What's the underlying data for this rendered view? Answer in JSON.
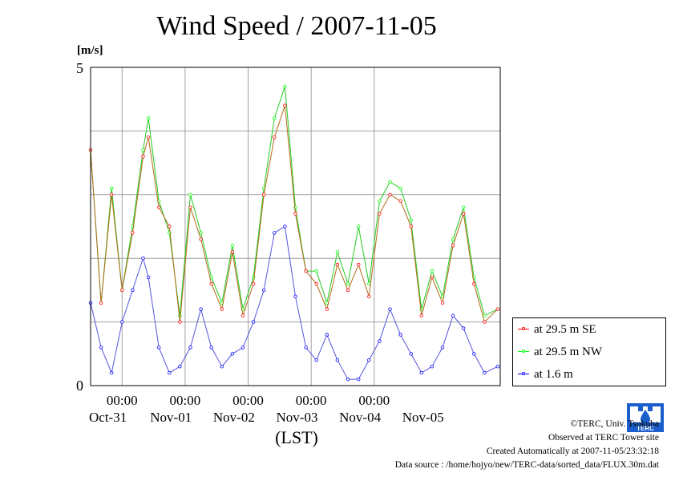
{
  "chart_data": {
    "type": "line",
    "title": "Wind Speed / 2007-11-05",
    "ylabel": "[m/s]",
    "xlabel": "(LST)",
    "ylim": [
      0,
      5
    ],
    "y_ticks": [
      0,
      5
    ],
    "y_grid": [
      1,
      2,
      3,
      4
    ],
    "x_time_labels": [
      "00:00",
      "00:00",
      "00:00",
      "00:00",
      "00:00"
    ],
    "x_date_labels": [
      "Oct-31",
      "Nov-01",
      "Nov-02",
      "Nov-03",
      "Nov-04",
      "Nov-05"
    ],
    "x_range": [
      "2007-10-30T12:00",
      "2007-11-05T23:59"
    ],
    "grid": true,
    "legend_position": "bottom-right",
    "series": [
      {
        "name": "at 29.5 m SE",
        "color": "#ff0000",
        "points": [
          [
            "2007-10-30T12:00",
            3.7
          ],
          [
            "2007-10-30T16:00",
            1.3
          ],
          [
            "2007-10-30T20:00",
            3.0
          ],
          [
            "2007-10-31T00:00",
            1.5
          ],
          [
            "2007-10-31T04:00",
            2.4
          ],
          [
            "2007-10-31T08:00",
            3.6
          ],
          [
            "2007-10-31T10:00",
            3.9
          ],
          [
            "2007-10-31T14:00",
            2.8
          ],
          [
            "2007-10-31T18:00",
            2.5
          ],
          [
            "2007-10-31T22:00",
            1.0
          ],
          [
            "2007-11-01T02:00",
            2.8
          ],
          [
            "2007-11-01T06:00",
            2.3
          ],
          [
            "2007-11-01T10:00",
            1.6
          ],
          [
            "2007-11-01T14:00",
            1.2
          ],
          [
            "2007-11-01T18:00",
            2.1
          ],
          [
            "2007-11-01T22:00",
            1.1
          ],
          [
            "2007-11-02T02:00",
            1.6
          ],
          [
            "2007-11-02T06:00",
            3.0
          ],
          [
            "2007-11-02T10:00",
            3.9
          ],
          [
            "2007-11-02T14:00",
            4.4
          ],
          [
            "2007-11-02T18:00",
            2.7
          ],
          [
            "2007-11-02T22:00",
            1.8
          ],
          [
            "2007-11-03T02:00",
            1.6
          ],
          [
            "2007-11-03T06:00",
            1.2
          ],
          [
            "2007-11-03T10:00",
            1.9
          ],
          [
            "2007-11-03T14:00",
            1.5
          ],
          [
            "2007-11-03T18:00",
            1.9
          ],
          [
            "2007-11-03T22:00",
            1.4
          ],
          [
            "2007-11-04T02:00",
            2.7
          ],
          [
            "2007-11-04T06:00",
            3.0
          ],
          [
            "2007-11-04T10:00",
            2.9
          ],
          [
            "2007-11-04T14:00",
            2.5
          ],
          [
            "2007-11-04T18:00",
            1.1
          ],
          [
            "2007-11-04T22:00",
            1.7
          ],
          [
            "2007-11-05T02:00",
            1.3
          ],
          [
            "2007-11-05T06:00",
            2.2
          ],
          [
            "2007-11-05T10:00",
            2.7
          ],
          [
            "2007-11-05T14:00",
            1.6
          ],
          [
            "2007-11-05T18:00",
            1.0
          ],
          [
            "2007-11-05T23:00",
            1.2
          ]
        ]
      },
      {
        "name": "at 29.5 m NW",
        "color": "#00ff00",
        "points": [
          [
            "2007-10-30T12:00",
            3.7
          ],
          [
            "2007-10-30T16:00",
            1.3
          ],
          [
            "2007-10-30T20:00",
            3.1
          ],
          [
            "2007-10-31T00:00",
            1.5
          ],
          [
            "2007-10-31T04:00",
            2.5
          ],
          [
            "2007-10-31T08:00",
            3.7
          ],
          [
            "2007-10-31T10:00",
            4.2
          ],
          [
            "2007-10-31T14:00",
            2.9
          ],
          [
            "2007-10-31T18:00",
            2.4
          ],
          [
            "2007-10-31T22:00",
            1.1
          ],
          [
            "2007-11-01T02:00",
            3.0
          ],
          [
            "2007-11-01T06:00",
            2.4
          ],
          [
            "2007-11-01T10:00",
            1.7
          ],
          [
            "2007-11-01T14:00",
            1.3
          ],
          [
            "2007-11-01T18:00",
            2.2
          ],
          [
            "2007-11-01T22:00",
            1.2
          ],
          [
            "2007-11-02T02:00",
            1.7
          ],
          [
            "2007-11-02T06:00",
            3.1
          ],
          [
            "2007-11-02T10:00",
            4.2
          ],
          [
            "2007-11-02T14:00",
            4.7
          ],
          [
            "2007-11-02T18:00",
            2.8
          ],
          [
            "2007-11-02T22:00",
            1.8
          ],
          [
            "2007-11-03T02:00",
            1.8
          ],
          [
            "2007-11-03T06:00",
            1.3
          ],
          [
            "2007-11-03T10:00",
            2.1
          ],
          [
            "2007-11-03T14:00",
            1.6
          ],
          [
            "2007-11-03T18:00",
            2.5
          ],
          [
            "2007-11-03T22:00",
            1.6
          ],
          [
            "2007-11-04T02:00",
            2.9
          ],
          [
            "2007-11-04T06:00",
            3.2
          ],
          [
            "2007-11-04T10:00",
            3.1
          ],
          [
            "2007-11-04T14:00",
            2.6
          ],
          [
            "2007-11-04T18:00",
            1.2
          ],
          [
            "2007-11-04T22:00",
            1.8
          ],
          [
            "2007-11-05T02:00",
            1.4
          ],
          [
            "2007-11-05T06:00",
            2.3
          ],
          [
            "2007-11-05T10:00",
            2.8
          ],
          [
            "2007-11-05T14:00",
            1.7
          ],
          [
            "2007-11-05T18:00",
            1.1
          ],
          [
            "2007-11-05T23:00",
            1.2
          ]
        ]
      },
      {
        "name": "at 1.6 m",
        "color": "#0000ff",
        "points": [
          [
            "2007-10-30T12:00",
            1.3
          ],
          [
            "2007-10-30T16:00",
            0.6
          ],
          [
            "2007-10-30T20:00",
            0.2
          ],
          [
            "2007-10-31T00:00",
            1.0
          ],
          [
            "2007-10-31T04:00",
            1.5
          ],
          [
            "2007-10-31T08:00",
            2.0
          ],
          [
            "2007-10-31T10:00",
            1.7
          ],
          [
            "2007-10-31T14:00",
            0.6
          ],
          [
            "2007-10-31T18:00",
            0.2
          ],
          [
            "2007-10-31T22:00",
            0.3
          ],
          [
            "2007-11-01T02:00",
            0.6
          ],
          [
            "2007-11-01T06:00",
            1.2
          ],
          [
            "2007-11-01T10:00",
            0.6
          ],
          [
            "2007-11-01T14:00",
            0.3
          ],
          [
            "2007-11-01T18:00",
            0.5
          ],
          [
            "2007-11-01T22:00",
            0.6
          ],
          [
            "2007-11-02T02:00",
            1.0
          ],
          [
            "2007-11-02T06:00",
            1.5
          ],
          [
            "2007-11-02T10:00",
            2.4
          ],
          [
            "2007-11-02T14:00",
            2.5
          ],
          [
            "2007-11-02T18:00",
            1.4
          ],
          [
            "2007-11-02T22:00",
            0.6
          ],
          [
            "2007-11-03T02:00",
            0.4
          ],
          [
            "2007-11-03T06:00",
            0.8
          ],
          [
            "2007-11-03T10:00",
            0.4
          ],
          [
            "2007-11-03T14:00",
            0.1
          ],
          [
            "2007-11-03T18:00",
            0.1
          ],
          [
            "2007-11-03T22:00",
            0.4
          ],
          [
            "2007-11-04T02:00",
            0.7
          ],
          [
            "2007-11-04T06:00",
            1.2
          ],
          [
            "2007-11-04T10:00",
            0.8
          ],
          [
            "2007-11-04T14:00",
            0.5
          ],
          [
            "2007-11-04T18:00",
            0.2
          ],
          [
            "2007-11-04T22:00",
            0.3
          ],
          [
            "2007-11-05T02:00",
            0.6
          ],
          [
            "2007-11-05T06:00",
            1.1
          ],
          [
            "2007-11-05T10:00",
            0.9
          ],
          [
            "2007-11-05T14:00",
            0.5
          ],
          [
            "2007-11-05T18:00",
            0.2
          ],
          [
            "2007-11-05T23:00",
            0.3
          ]
        ]
      }
    ]
  },
  "footer": {
    "copyright": "©TERC, Univ. Tsukuba",
    "observed": "Observed at TERC Tower site",
    "created": "Created Automatically at 2007-11-05/23:32:18",
    "source": "Data source : /home/hojyo/new/TERC-data/sorted_data/FLUX.30m.dat"
  },
  "logo": {
    "text": "TERC",
    "color": "#1a5fcc"
  }
}
